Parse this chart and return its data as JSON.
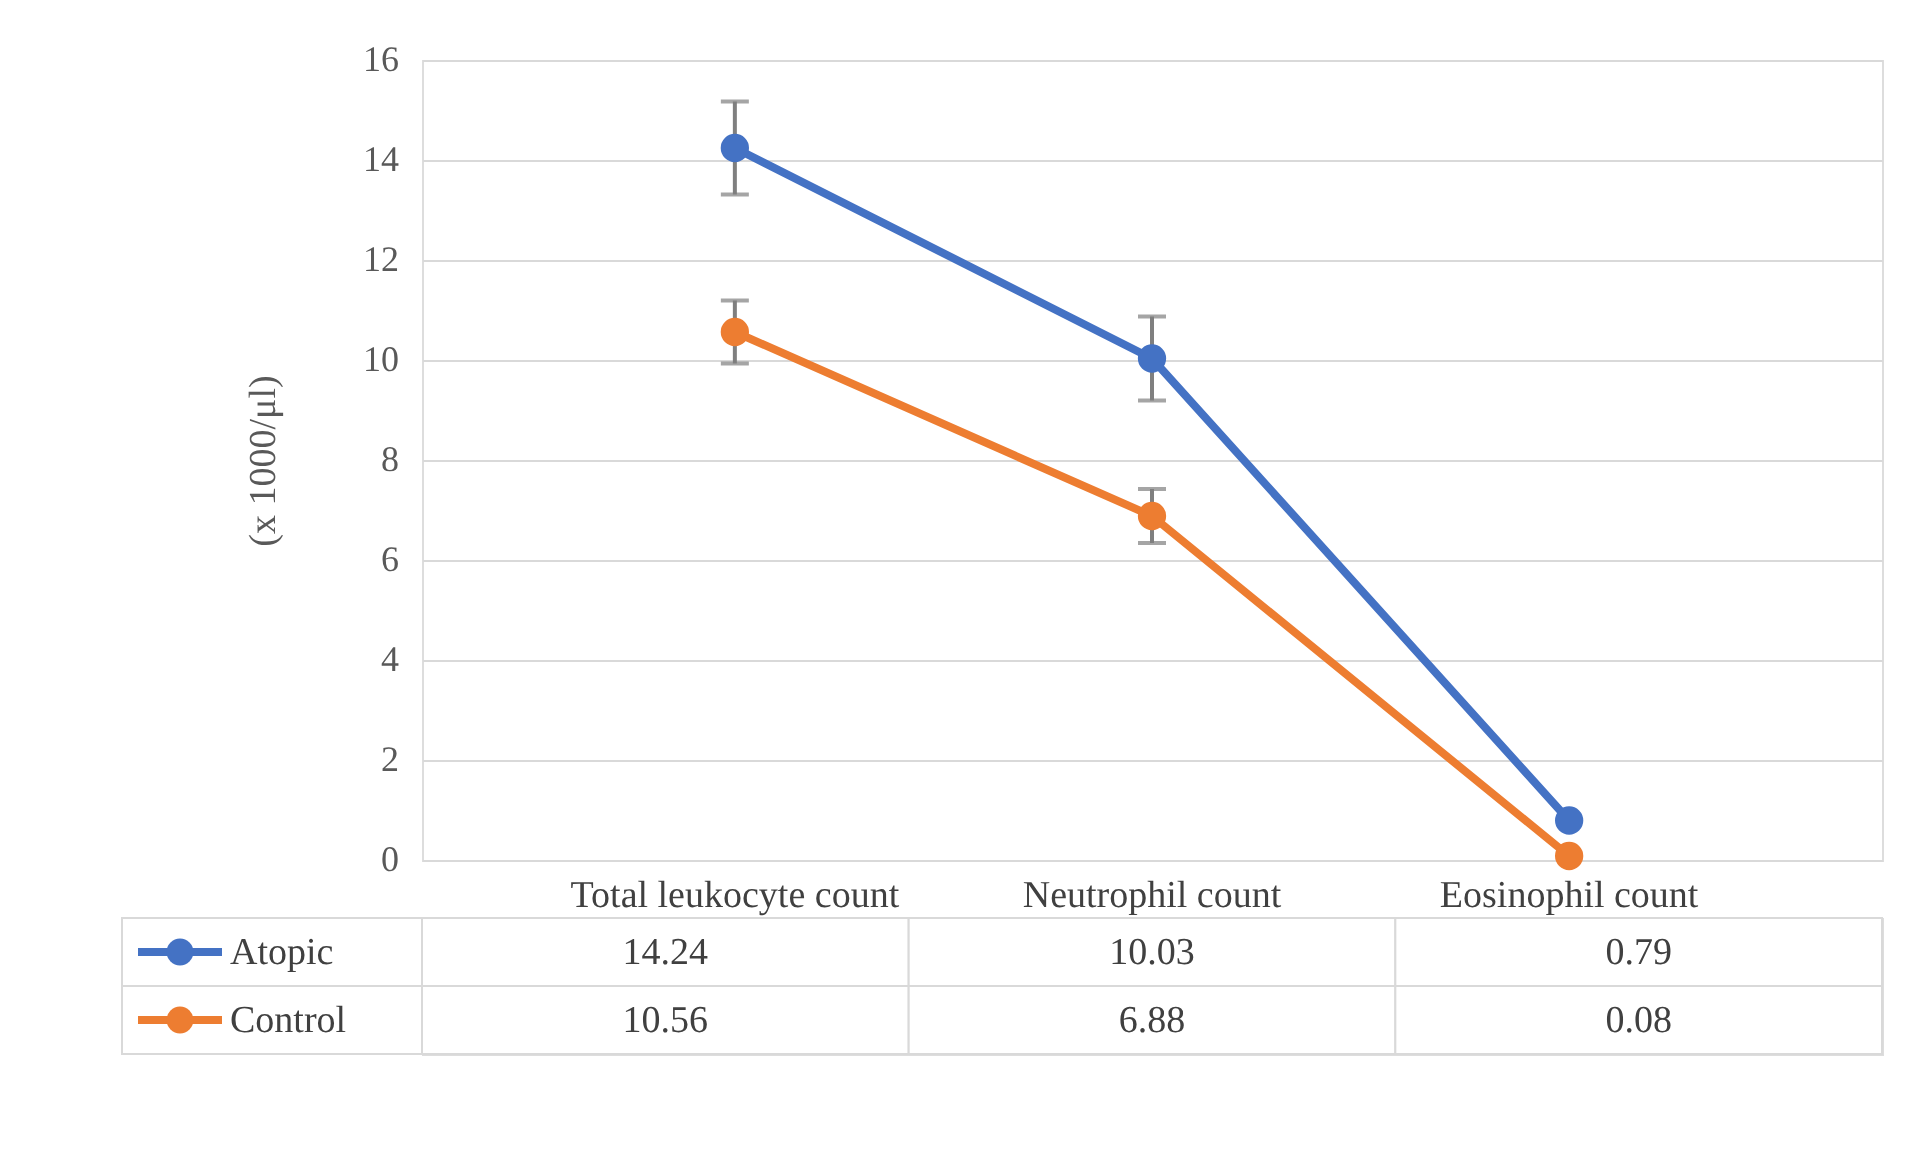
{
  "chart_data": {
    "type": "line",
    "ylabel": "(x 1000/μl)",
    "categories": [
      "Total leukocyte count",
      "Neutrophil count",
      "Eosinophil count"
    ],
    "series": [
      {
        "name": "Atopic",
        "color": "#4472c4",
        "values": [
          14.24,
          10.03,
          0.79
        ],
        "errors": [
          0.93,
          0.84,
          null
        ]
      },
      {
        "name": "Control",
        "color": "#ed7d31",
        "values": [
          10.56,
          6.88,
          0.08
        ],
        "errors": [
          0.63,
          0.54,
          null
        ]
      }
    ],
    "ylim": [
      0,
      16
    ],
    "yticks": [
      0,
      2,
      4,
      6,
      8,
      10,
      12,
      14,
      16
    ],
    "grid": "y",
    "marker": "circle",
    "line_style": "solid",
    "data_labels": true,
    "legend": "bottom"
  }
}
